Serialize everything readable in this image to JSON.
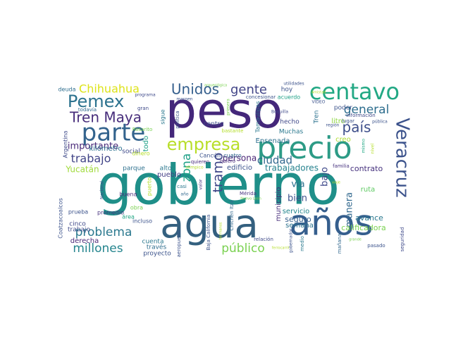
{
  "words": [
    {
      "text": "gobierno",
      "color": "#1f8f89"
    },
    {
      "text": "peso",
      "color": "#44277a"
    },
    {
      "text": "agua",
      "color": "#34607f"
    },
    {
      "text": "años",
      "color": "#355e8d"
    },
    {
      "text": "precio",
      "color": "#2d9b86"
    },
    {
      "text": "centavo",
      "color": "#22a884"
    },
    {
      "text": "Veracruz",
      "color": "#3b528b"
    },
    {
      "text": "parte",
      "color": "#33638d"
    },
    {
      "text": "empresa",
      "color": "#b8de29"
    },
    {
      "text": "Pemex",
      "color": "#2c728e"
    },
    {
      "text": "Tren Maya",
      "color": "#472d7b"
    },
    {
      "text": "Unidos",
      "color": "#355f8d"
    },
    {
      "text": "gente",
      "color": "#414487"
    },
    {
      "text": "Chihuahua",
      "color": "#dde318"
    },
    {
      "text": "general",
      "color": "#2e6e8e"
    },
    {
      "text": "país",
      "color": "#3d4e8a"
    },
    {
      "text": "tramo",
      "color": "#3f4788"
    },
    {
      "text": "zona",
      "color": "#1fa187"
    },
    {
      "text": "trabajo",
      "color": "#414487"
    },
    {
      "text": "problema",
      "color": "#2a788e"
    },
    {
      "text": "millones",
      "color": "#25858e"
    },
    {
      "text": "público",
      "color": "#7ad151"
    },
    {
      "text": "ciudad",
      "color": "#31688e"
    },
    {
      "text": "importante",
      "color": "#482878"
    },
    {
      "text": "bien",
      "color": "#3b528b"
    },
    {
      "text": "vía",
      "color": "#2c718e"
    },
    {
      "text": "bajo",
      "color": "#3e4989"
    },
    {
      "text": "manera",
      "color": "#31688e"
    },
    {
      "text": "Yucatán",
      "color": "#9fda3a"
    },
    {
      "text": "trabajadores",
      "color": "#26828e"
    },
    {
      "text": "persona",
      "color": "#482475"
    },
    {
      "text": "contrato",
      "color": "#46327e"
    },
    {
      "text": "avance",
      "color": "#2a788e"
    },
    {
      "text": "calificadora",
      "color": "#7ad151"
    },
    {
      "text": "seguro",
      "color": "#355f8d"
    },
    {
      "text": "servicio",
      "color": "#24868e"
    },
    {
      "text": "ruta",
      "color": "#5ec962"
    },
    {
      "text": "semana",
      "color": "#2c728e"
    },
    {
      "text": "municipio",
      "color": "#472c7a"
    },
    {
      "text": "edificio",
      "color": "#3b528b"
    },
    {
      "text": "Ensenada",
      "color": "#2e6f8e"
    },
    {
      "text": "kilómetro",
      "color": "#2c718e"
    },
    {
      "text": "trabajo",
      "color": "#3e4a89"
    },
    {
      "text": "derecha",
      "color": "#482677"
    },
    {
      "text": "cinco",
      "color": "#3f4889"
    },
    {
      "text": "proyecto",
      "color": "#3b528b"
    },
    {
      "text": "cuenta",
      "color": "#2a788e"
    },
    {
      "text": "través",
      "color": "#2e6e8e"
    },
    {
      "text": "centro",
      "color": "#3e4c8a"
    },
    {
      "text": "pueblo",
      "color": "#433e85"
    },
    {
      "text": "todo",
      "color": "#1fa187"
    },
    {
      "text": "social",
      "color": "#3e4989"
    },
    {
      "text": "parque",
      "color": "#2d708e"
    },
    {
      "text": "alto",
      "color": "#2a788e"
    },
    {
      "text": "creo",
      "color": "#addc30"
    },
    {
      "text": "litro",
      "color": "#8fd744"
    },
    {
      "text": "poder",
      "color": "#3b528b"
    },
    {
      "text": "hecho",
      "color": "#3f4788"
    },
    {
      "text": "Muchas",
      "color": "#2a788e"
    },
    {
      "text": "Tren",
      "color": "#2c718e"
    },
    {
      "text": "hoy",
      "color": "#3b528b"
    },
    {
      "text": "deuda",
      "color": "#2e6e8e"
    },
    {
      "text": "acuerdo",
      "color": "#1fa187"
    },
    {
      "text": "concesionar",
      "color": "#3b528b"
    },
    {
      "text": "Tamaulipas",
      "color": "#2a788e"
    },
    {
      "text": "todavía",
      "color": "#31688e"
    },
    {
      "text": "Rosarito",
      "color": "#7ad151"
    },
    {
      "text": "dinero",
      "color": "#b5de2b"
    },
    {
      "text": "sigue",
      "color": "#2a788e"
    },
    {
      "text": "política",
      "color": "#3b528b"
    },
    {
      "text": "bastante",
      "color": "#b5de2b"
    },
    {
      "text": "Cancún",
      "color": "#3b528b"
    },
    {
      "text": "cuatro",
      "color": "#31688e"
    },
    {
      "text": "quieren",
      "color": "#472c7a"
    },
    {
      "text": "olimpico",
      "color": "#b5de2b"
    },
    {
      "text": "valor",
      "color": "#46327e"
    },
    {
      "text": "casi",
      "color": "#2a788e"
    },
    {
      "text": "año",
      "color": "#31688e"
    },
    {
      "text": "Argentina",
      "color": "#3e4989"
    },
    {
      "text": "Coatzacoalcos",
      "color": "#3b528b"
    },
    {
      "text": "Nacional",
      "color": "#3e4989"
    },
    {
      "text": "buena",
      "color": "#472c7a"
    },
    {
      "text": "puerto",
      "color": "#b5de2b"
    },
    {
      "text": "obra",
      "color": "#7ad151"
    },
    {
      "text": "prueba",
      "color": "#3b528b"
    },
    {
      "text": "promedio",
      "color": "#46327e"
    },
    {
      "text": "área",
      "color": "#22a884"
    },
    {
      "text": "incluso",
      "color": "#3b528b"
    },
    {
      "text": "aeropuerto",
      "color": "#3b528b"
    },
    {
      "text": "quiero",
      "color": "#472c7a"
    },
    {
      "text": "Baja California",
      "color": "#3b528b"
    },
    {
      "text": "Chichén Itzá",
      "color": "#31688e"
    },
    {
      "text": "Mérida",
      "color": "#46327e"
    },
    {
      "text": "Nuevo León",
      "color": "#7ad151"
    },
    {
      "text": "relación",
      "color": "#3e4989"
    },
    {
      "text": "gobernador",
      "color": "#3b528b"
    },
    {
      "text": "medio",
      "color": "#2a788e"
    },
    {
      "text": "mañana",
      "color": "#31688e"
    },
    {
      "text": "pasado",
      "color": "#3b528b"
    },
    {
      "text": "seguridad",
      "color": "#3e4989"
    },
    {
      "text": "grande",
      "color": "#7ad151"
    },
    {
      "text": "lugar",
      "color": "#3b528b"
    },
    {
      "text": "región",
      "color": "#3b528b"
    },
    {
      "text": "pública",
      "color": "#3b528b"
    },
    {
      "text": "información",
      "color": "#3e4989"
    },
    {
      "text": "mismo",
      "color": "#22a884"
    },
    {
      "text": "nivel",
      "color": "#b5de2b"
    },
    {
      "text": "utilidades",
      "color": "#3b528b"
    },
    {
      "text": "Boquilla",
      "color": "#3e4989"
    },
    {
      "text": "VIDEO",
      "color": "#3b528b"
    },
    {
      "text": "Amistad",
      "color": "#b5de2b"
    },
    {
      "text": "primera",
      "color": "#7ad151"
    },
    {
      "text": "programa",
      "color": "#3e4989"
    },
    {
      "text": "margen",
      "color": "#3b528b"
    },
    {
      "text": "arqueológica",
      "color": "#7ad151"
    },
    {
      "text": "gran",
      "color": "#3e4989"
    },
    {
      "text": "familia",
      "color": "#46327e"
    },
    {
      "text": "hermanos",
      "color": "#b5de2b"
    },
    {
      "text": "ferrocarril",
      "color": "#b5de2b"
    },
    {
      "text": "viaje",
      "color": "#b5de2b"
    }
  ]
}
